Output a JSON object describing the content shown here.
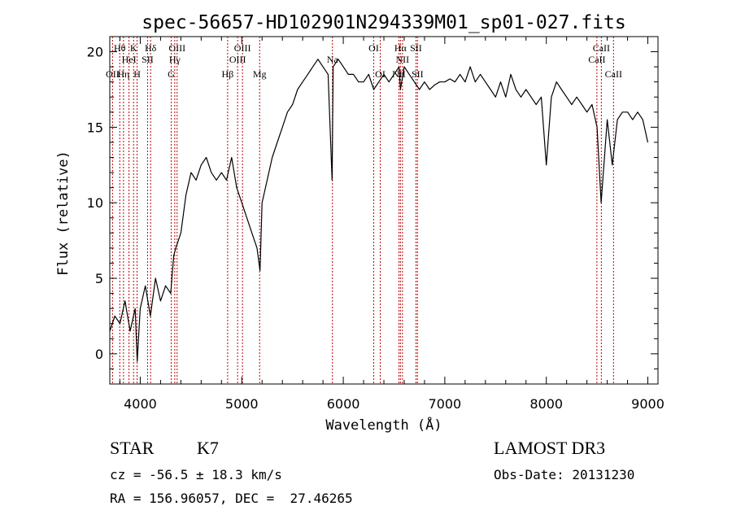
{
  "chart_data": {
    "type": "line",
    "title": "spec-56657-HD102901N294339M01_sp01-027.fits",
    "xlabel": "Wavelength (Å)",
    "ylabel": "Flux (relative)",
    "xlim": [
      3700,
      9100
    ],
    "ylim": [
      -2,
      21
    ],
    "xticks": [
      4000,
      5000,
      6000,
      7000,
      8000,
      9000
    ],
    "xtick_labels": [
      "4000",
      "5000",
      "6000",
      "7000",
      "8000",
      "9000"
    ],
    "yticks": [
      0,
      5,
      10,
      15,
      20
    ],
    "ytick_labels": [
      "0",
      "5",
      "10",
      "15",
      "20"
    ],
    "grid": false,
    "series": [
      {
        "x": [
          3700,
          3750,
          3800,
          3850,
          3900,
          3950,
          3970,
          4000,
          4050,
          4100,
          4150,
          4200,
          4250,
          4300,
          4330,
          4350,
          4400,
          4450,
          4500,
          4550,
          4600,
          4650,
          4700,
          4750,
          4800,
          4850,
          4900,
          4950,
          5000,
          5050,
          5100,
          5150,
          5180,
          5200,
          5250,
          5300,
          5350,
          5400,
          5450,
          5500,
          5550,
          5600,
          5650,
          5700,
          5750,
          5800,
          5850,
          5890,
          5900,
          5950,
          6000,
          6050,
          6100,
          6150,
          6200,
          6250,
          6300,
          6350,
          6400,
          6450,
          6500,
          6550,
          6563,
          6600,
          6650,
          6700,
          6750,
          6800,
          6850,
          6900,
          6950,
          7000,
          7050,
          7100,
          7150,
          7200,
          7250,
          7300,
          7350,
          7400,
          7450,
          7500,
          7550,
          7600,
          7650,
          7700,
          7750,
          7800,
          7850,
          7900,
          7950,
          8000,
          8050,
          8100,
          8150,
          8200,
          8250,
          8300,
          8350,
          8400,
          8450,
          8500,
          8540,
          8600,
          8650,
          8700,
          8750,
          8800,
          8850,
          8900,
          8950,
          9000
        ],
        "y": [
          1.5,
          2.5,
          2.0,
          3.5,
          1.5,
          3.0,
          -0.5,
          3.0,
          4.5,
          2.5,
          5.0,
          3.5,
          4.5,
          4.0,
          6.5,
          7.0,
          8.0,
          10.5,
          12.0,
          11.5,
          12.5,
          13.0,
          12.0,
          11.5,
          12.0,
          11.5,
          13.0,
          11.0,
          10.0,
          9.0,
          8.0,
          7.0,
          5.5,
          10.0,
          11.5,
          13.0,
          14.0,
          15.0,
          16.0,
          16.5,
          17.5,
          18.0,
          18.5,
          19.0,
          19.5,
          19.0,
          18.5,
          11.5,
          19.0,
          19.5,
          19.0,
          18.5,
          18.5,
          18.0,
          18.0,
          18.5,
          17.5,
          18.0,
          18.5,
          18.0,
          18.5,
          19.0,
          17.5,
          19.0,
          18.5,
          18.0,
          17.5,
          18.0,
          17.5,
          17.8,
          18.0,
          18.0,
          18.2,
          18.0,
          18.5,
          18.0,
          19.0,
          18.0,
          18.5,
          18.0,
          17.5,
          17.0,
          18.0,
          17.0,
          18.5,
          17.5,
          17.0,
          17.5,
          17.0,
          16.5,
          17.0,
          12.5,
          17.0,
          18.0,
          17.5,
          17.0,
          16.5,
          17.0,
          16.5,
          16.0,
          16.5,
          15.0,
          10.0,
          15.5,
          12.5,
          15.5,
          16.0,
          16.0,
          15.5,
          16.0,
          15.5,
          14.0
        ]
      }
    ],
    "line_color": "#000000",
    "marker_color": "#c00000",
    "lines": [
      {
        "name": "OII",
        "wl": 3727,
        "row": 3
      },
      {
        "name": "Hθ",
        "wl": 3798,
        "row": 1
      },
      {
        "name": "Hη",
        "wl": 3835,
        "row": 3
      },
      {
        "name": "HeI",
        "wl": 3889,
        "row": 2
      },
      {
        "name": "K",
        "wl": 3934,
        "row": 1
      },
      {
        "name": "H",
        "wl": 3969,
        "row": 3
      },
      {
        "name": "SII",
        "wl": 4072,
        "row": 2
      },
      {
        "name": "Hδ",
        "wl": 4102,
        "row": 1
      },
      {
        "name": "G",
        "wl": 4305,
        "row": 3
      },
      {
        "name": "Hγ",
        "wl": 4340,
        "row": 2
      },
      {
        "name": "OIII",
        "wl": 4363,
        "row": 1
      },
      {
        "name": "Hβ",
        "wl": 4861,
        "row": 3
      },
      {
        "name": "OIII",
        "wl": 4959,
        "row": 2
      },
      {
        "name": "OIII",
        "wl": 5007,
        "row": 1
      },
      {
        "name": "Mg",
        "wl": 5176,
        "row": 3
      },
      {
        "name": "Na",
        "wl": 5893,
        "row": 2
      },
      {
        "name": "OI",
        "wl": 6300,
        "row": 1
      },
      {
        "name": "OI",
        "wl": 6364,
        "row": 3
      },
      {
        "name": "NII",
        "wl": 6548,
        "row": 3
      },
      {
        "name": "Hα",
        "wl": 6563,
        "row": 1
      },
      {
        "name": "NII",
        "wl": 6583,
        "row": 2
      },
      {
        "name": "SII",
        "wl": 6716,
        "row": 1
      },
      {
        "name": "SII",
        "wl": 6731,
        "row": 3
      },
      {
        "name": "CaII",
        "wl": 8498,
        "row": 2
      },
      {
        "name": "CaII",
        "wl": 8542,
        "row": 1
      },
      {
        "name": "CaII",
        "wl": 8662,
        "row": 3
      }
    ]
  },
  "info": {
    "class": "STAR",
    "subclass": "K7",
    "survey": "LAMOST DR3",
    "cz": "cz = -56.5 ± 18.3 km/s",
    "obs_date": "Obs-Date: 20131230",
    "coords": "RA = 156.96057, DEC =  27.46265"
  }
}
